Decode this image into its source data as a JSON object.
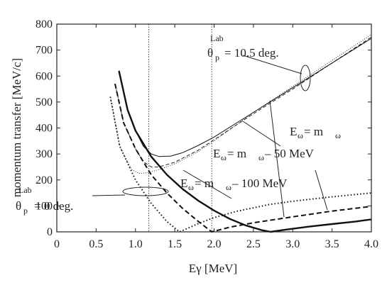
{
  "chart_data": {
    "type": "line",
    "xlabel": "Eγ [MeV]",
    "ylabel": "momentum transfer [MeV/c]",
    "xlim": [
      0,
      4.0
    ],
    "ylim": [
      0,
      800
    ],
    "x_ticks": [
      0,
      0.5,
      1.0,
      1.5,
      2.0,
      2.5,
      3.0,
      3.5,
      4.0
    ],
    "x_tick_labels": [
      "0",
      "0.5",
      "1.0",
      "1.5",
      "2.0",
      "2.5",
      "3.0",
      "3.5",
      "4.0"
    ],
    "y_ticks": [
      0,
      100,
      200,
      300,
      400,
      500,
      600,
      700,
      800
    ],
    "y_tick_labels": [
      "0",
      "100",
      "200",
      "300",
      "400",
      "500",
      "600",
      "700",
      "800"
    ],
    "grid": false,
    "vertical_reference_lines": [
      1.17,
      1.97
    ],
    "series": [
      {
        "style": "solid-thick",
        "angle": "0",
        "x": [
          0.79,
          0.9,
          1.0,
          1.2,
          1.4,
          1.6,
          1.8,
          2.0,
          2.2,
          2.4,
          2.6,
          2.72,
          2.9,
          3.2,
          3.5,
          3.8,
          4.0
        ],
        "y": [
          620,
          470,
          390,
          290,
          220,
          165,
          120,
          82,
          50,
          25,
          7,
          0,
          8,
          20,
          30,
          40,
          48
        ]
      },
      {
        "style": "dashed-thick",
        "angle": "0",
        "x": [
          0.74,
          0.85,
          1.0,
          1.2,
          1.4,
          1.6,
          1.8,
          1.97,
          2.2,
          2.5,
          3.0,
          3.5,
          4.0
        ],
        "y": [
          570,
          420,
          320,
          220,
          150,
          90,
          40,
          0,
          18,
          35,
          58,
          80,
          98
        ]
      },
      {
        "style": "dotted-thick",
        "angle": "0",
        "x": [
          0.68,
          0.8,
          1.0,
          1.2,
          1.4,
          1.56,
          1.8,
          2.0,
          2.3,
          2.7,
          3.0,
          3.5,
          4.0
        ],
        "y": [
          520,
          330,
          200,
          110,
          40,
          0,
          32,
          55,
          80,
          105,
          118,
          135,
          150
        ]
      },
      {
        "style": "solid-thin",
        "angle": "10.5",
        "x": [
          0.79,
          0.9,
          1.0,
          1.1,
          1.2,
          1.3,
          1.45,
          1.6,
          1.8,
          2.0,
          2.5,
          3.0,
          3.5,
          4.0
        ],
        "y": [
          620,
          470,
          390,
          330,
          300,
          290,
          292,
          305,
          333,
          365,
          460,
          555,
          650,
          745
        ]
      },
      {
        "style": "dashed-thin",
        "angle": "10.5",
        "x": [
          0.74,
          0.85,
          1.0,
          1.1,
          1.2,
          1.3,
          1.5,
          1.8,
          2.0,
          2.5,
          3.0,
          3.5,
          4.0
        ],
        "y": [
          570,
          420,
          320,
          270,
          250,
          250,
          268,
          315,
          355,
          455,
          550,
          650,
          750
        ]
      },
      {
        "style": "dotted-thin",
        "angle": "10.5",
        "x": [
          0.68,
          0.8,
          0.95,
          1.05,
          1.15,
          1.3,
          1.5,
          1.8,
          2.0,
          2.5,
          3.0,
          3.5,
          4.0
        ],
        "y": [
          520,
          330,
          240,
          225,
          228,
          240,
          262,
          310,
          350,
          460,
          560,
          660,
          760
        ]
      }
    ],
    "annotations": [
      {
        "id": "theta105",
        "symbol": "θ",
        "subscript": "p",
        "superscript": "Lab",
        "text": "= 10.5 deg."
      },
      {
        "id": "theta0",
        "symbol": "θ",
        "subscript": "p",
        "superscript": "Lab",
        "text": "= 0 deg."
      },
      {
        "id": "e-m",
        "E": "E",
        "sub1": "ω",
        "eq": " = m",
        "sub2": "ω",
        "tail": ""
      },
      {
        "id": "e-m-50",
        "E": "E",
        "sub1": "ω",
        "eq": " = m",
        "sub2": "ω",
        "tail": " – 50 MeV"
      },
      {
        "id": "e-m-100",
        "E": "E",
        "sub1": "ω",
        "eq": " = m",
        "sub2": "ω",
        "tail": " – 100 MeV"
      }
    ]
  }
}
